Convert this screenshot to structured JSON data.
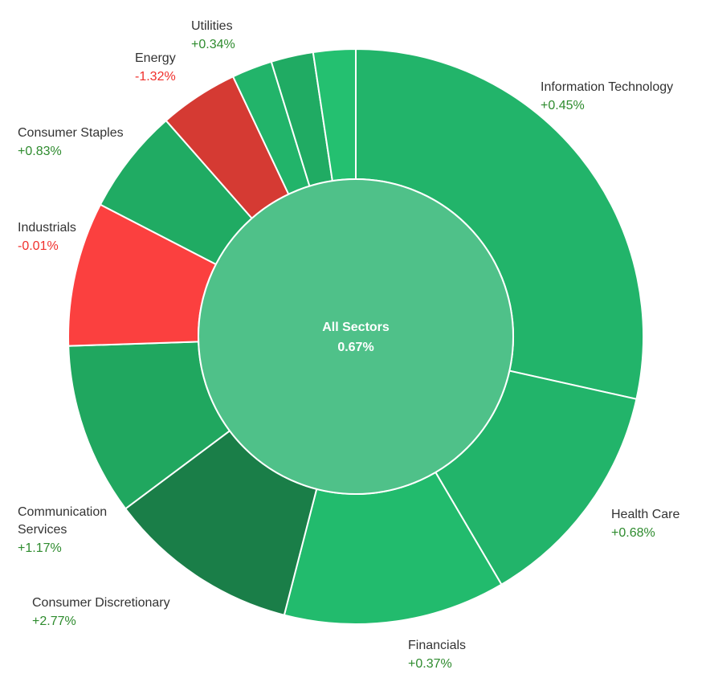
{
  "chart_data": {
    "type": "pie",
    "subtype": "sunburst-donut",
    "center": {
      "label": "All Sectors",
      "value": "0.67%"
    },
    "colors": {
      "green": "#22b46a",
      "bright_green": "#24c070",
      "dark_green": "#1a7e48",
      "red": "#e53935",
      "bright_red": "#fb403f",
      "center": "#4fc189",
      "positive_text": "#2e8b2e",
      "negative_text": "#f0302c"
    },
    "segments": [
      {
        "name": "Information Technology",
        "value": 28.8,
        "change": "+0.45%",
        "color": "#22b46a"
      },
      {
        "name": "Health Care",
        "value": 13.2,
        "change": "+0.68%",
        "color": "#22b46a"
      },
      {
        "name": "Financials",
        "value": 12.6,
        "change": "+0.37%",
        "color": "#22bb6d"
      },
      {
        "name": "Consumer Discretionary",
        "value": 10.9,
        "change": "+2.77%",
        "color": "#1a7e48"
      },
      {
        "name": "Communication Services",
        "value": 9.8,
        "change": "+1.17%",
        "color": "#20a75f"
      },
      {
        "name": "Industrials",
        "value": 8.2,
        "change": "-0.01%",
        "color": "#fb403f"
      },
      {
        "name": "Consumer Staples",
        "value": 6.0,
        "change": "+0.83%",
        "color": "#20ab63"
      },
      {
        "name": "Energy",
        "value": 4.5,
        "change": "-1.32%",
        "color": "#d53a33"
      },
      {
        "name": "",
        "value": 2.3,
        "change": "",
        "color": "#22b46a"
      },
      {
        "name": "",
        "value": 2.4,
        "change": "",
        "color": "#20ab63"
      },
      {
        "name": "Utilities",
        "value": 2.4,
        "change": "+0.34%",
        "color": "#24c070"
      }
    ]
  }
}
